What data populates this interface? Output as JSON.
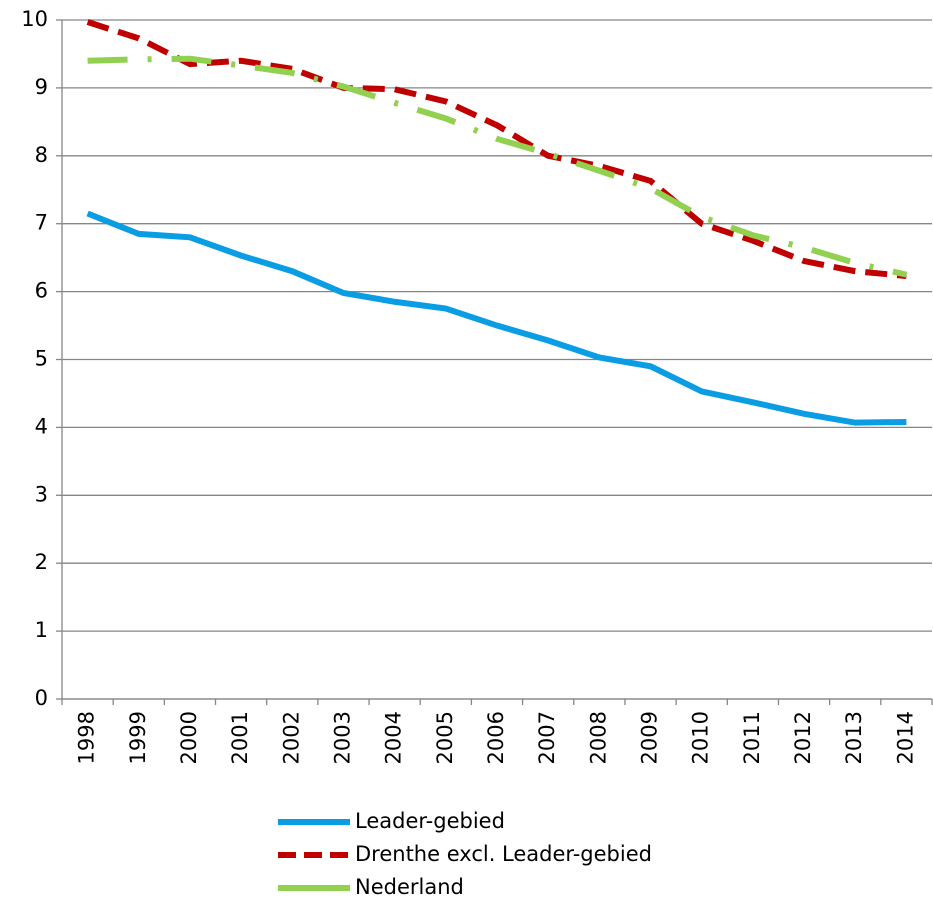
{
  "chart_data": {
    "type": "line",
    "categories": [
      "1998",
      "1999",
      "2000",
      "2001",
      "2002",
      "2003",
      "2004",
      "2005",
      "2006",
      "2007",
      "2008",
      "2009",
      "2010",
      "2011",
      "2012",
      "2013",
      "2014"
    ],
    "series": [
      {
        "name": "Leader-gebied",
        "color": "#0a9de3",
        "dash": "solid",
        "values": [
          7.15,
          6.85,
          6.8,
          6.53,
          6.3,
          5.98,
          5.85,
          5.75,
          5.5,
          5.28,
          5.03,
          4.9,
          4.53,
          4.37,
          4.2,
          4.07,
          4.08
        ]
      },
      {
        "name": "Drenthe excl. Leader-gebied",
        "color": "#c00000",
        "dash": "dash",
        "values": [
          9.97,
          9.73,
          9.35,
          9.4,
          9.28,
          9.0,
          8.98,
          8.8,
          8.45,
          8.0,
          7.85,
          7.63,
          7.0,
          6.75,
          6.45,
          6.3,
          6.23
        ]
      },
      {
        "name": "Nederland",
        "color": "#92d050",
        "dash": "longdashdot",
        "values": [
          9.4,
          9.42,
          9.43,
          9.33,
          9.22,
          9.02,
          8.78,
          8.55,
          8.25,
          8.03,
          7.78,
          7.52,
          7.1,
          6.83,
          6.65,
          6.42,
          6.25
        ]
      }
    ],
    "ylim": [
      0,
      10
    ],
    "yticks": [
      0,
      1,
      2,
      3,
      4,
      5,
      6,
      7,
      8,
      9,
      10
    ],
    "grid": true
  }
}
